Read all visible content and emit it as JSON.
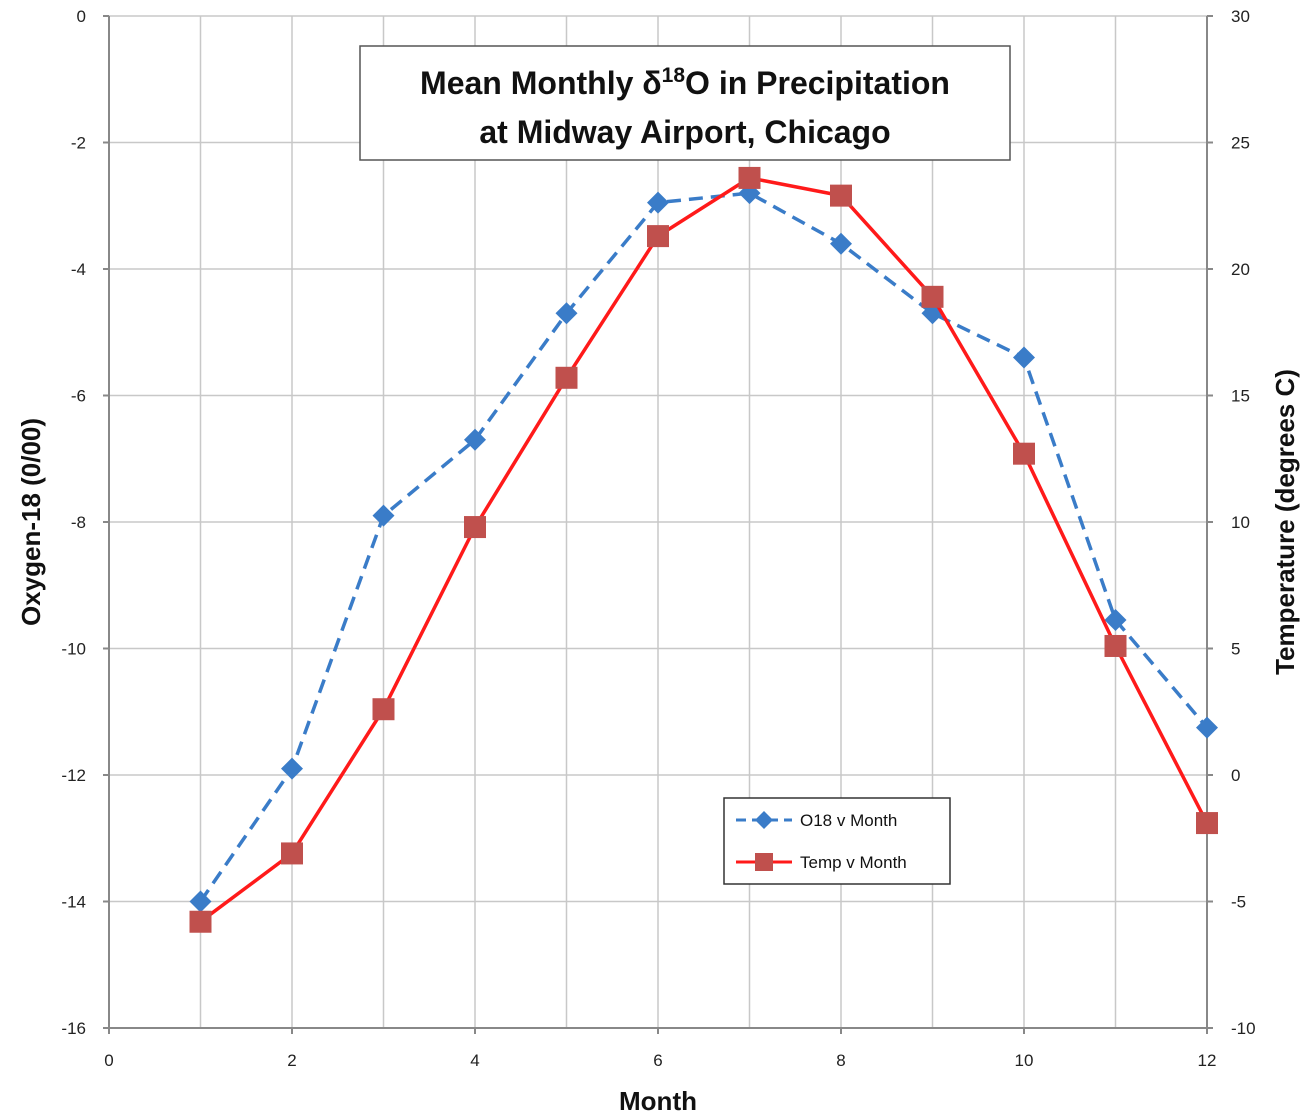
{
  "chart_data": {
    "type": "line",
    "title_prefix": "Mean Monthly δ",
    "title_superscript": "18",
    "title_suffix": "O in Precipitation",
    "title_line2": "at Midway Airport, Chicago",
    "xlabel": "Month",
    "ylabel_left": "Oxygen-18 (0/00)",
    "ylabel_right": "Temperature (degrees C)",
    "xlim": [
      0,
      12
    ],
    "ylim_left": [
      -16,
      0
    ],
    "ylim_right": [
      -10,
      30
    ],
    "x_ticks": [
      "0",
      "2",
      "4",
      "6",
      "8",
      "10",
      "12"
    ],
    "y_ticks_left": [
      "0",
      "-2",
      "-4",
      "-6",
      "-8",
      "-10",
      "-12",
      "-14",
      "-16"
    ],
    "y_ticks_right": [
      "30",
      "25",
      "20",
      "15",
      "10",
      "5",
      "0",
      "-5",
      "-10"
    ],
    "grid": true,
    "legend_position": "lower-center",
    "series": [
      {
        "name": "O18 v Month",
        "axis": "left",
        "color": "#3a7cc8",
        "line_style": "dashed",
        "marker": "diamond",
        "x": [
          1,
          2,
          3,
          4,
          5,
          6,
          7,
          8,
          9,
          10,
          11,
          12
        ],
        "y": [
          -14.0,
          -11.9,
          -7.9,
          -6.7,
          -4.7,
          -2.95,
          -2.8,
          -3.6,
          -4.7,
          -5.4,
          -9.55,
          -11.25
        ]
      },
      {
        "name": "Temp v Month",
        "axis": "right",
        "color": "#ff1a1a",
        "marker_color": "#c0504d",
        "line_style": "solid",
        "marker": "square",
        "x": [
          1,
          2,
          3,
          4,
          5,
          6,
          7,
          8,
          9,
          10,
          11,
          12
        ],
        "y": [
          -5.8,
          -3.1,
          2.6,
          9.8,
          15.7,
          21.3,
          23.6,
          22.9,
          18.9,
          12.7,
          5.1,
          -1.9
        ]
      }
    ]
  }
}
